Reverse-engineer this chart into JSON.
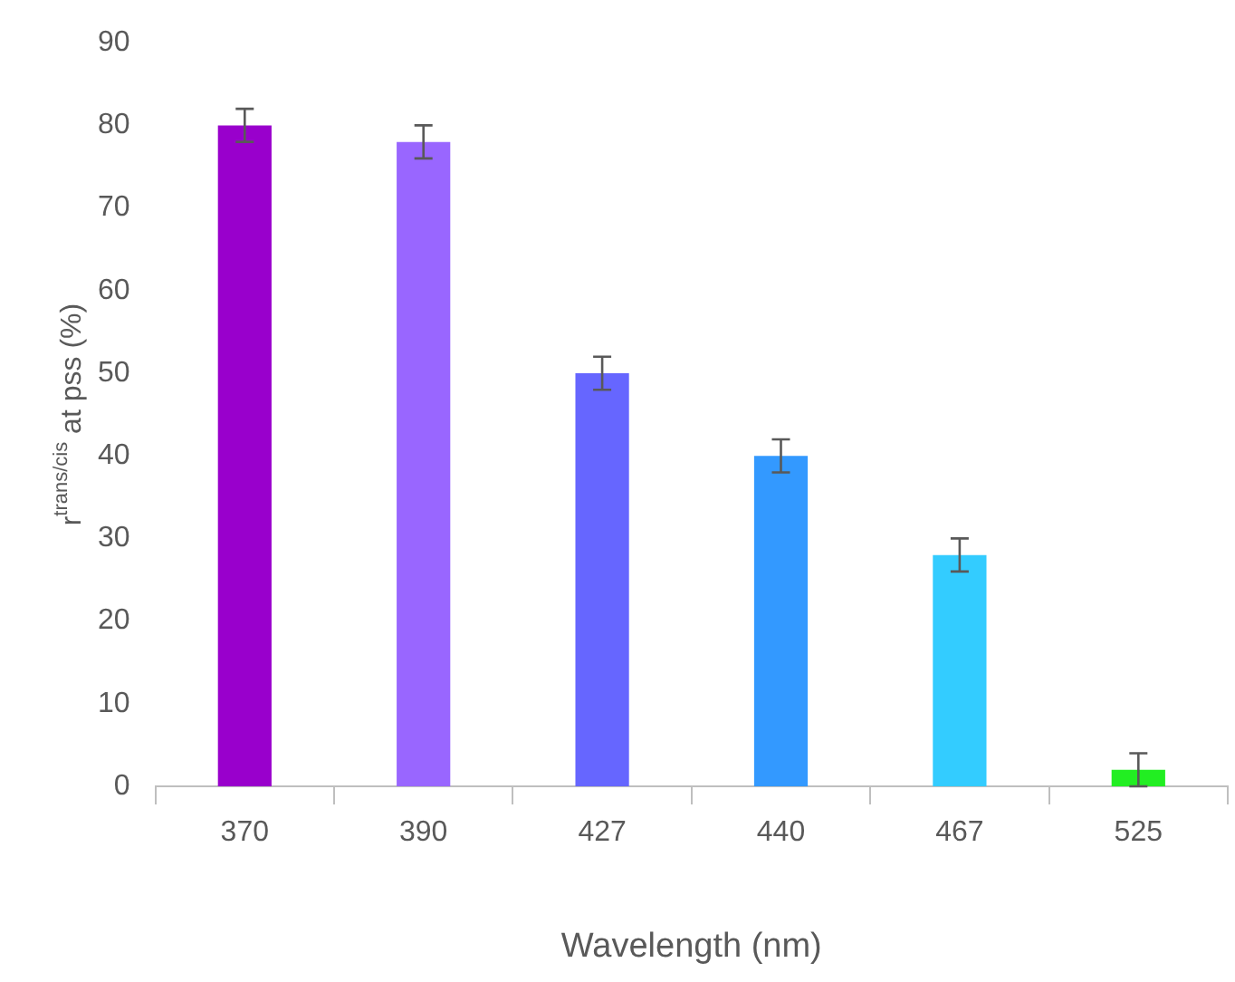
{
  "chart_data": {
    "type": "bar",
    "xlabel": "Wavelength (nm)",
    "ylabel": "r$^{trans/cis}$ at pss (%)",
    "categories": [
      "370",
      "390",
      "427",
      "440",
      "467",
      "525"
    ],
    "values": [
      80,
      78,
      50,
      40,
      28,
      2
    ],
    "colors": [
      "#9900cc",
      "#9966ff",
      "#6666ff",
      "#3399ff",
      "#33ccff",
      "#22ee22"
    ],
    "errors": [
      2,
      2,
      2,
      2,
      2,
      2
    ],
    "ylim": [
      0,
      90
    ],
    "yticks": [
      0,
      10,
      20,
      30,
      40,
      50,
      60,
      70,
      80,
      90
    ],
    "grid": false,
    "legend": false
  }
}
